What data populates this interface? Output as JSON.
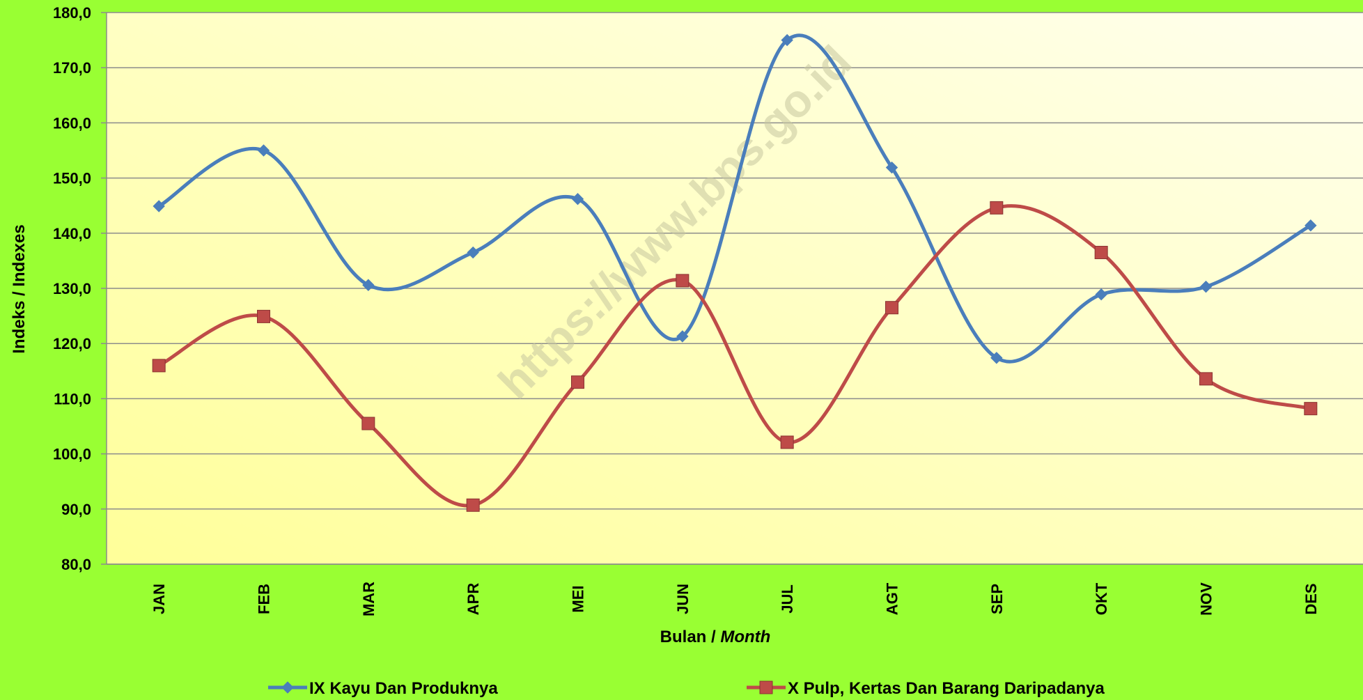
{
  "chart_data": {
    "type": "line",
    "categories": [
      "JAN",
      "FEB",
      "MAR",
      "APR",
      "MEI",
      "JUN",
      "JUL",
      "AGT",
      "SEP",
      "OKT",
      "NOV",
      "DES"
    ],
    "series": [
      {
        "name": "IX Kayu Dan Produknya",
        "color": "#4a7ebb",
        "marker": "diamond",
        "values": [
          144.9,
          155.0,
          130.6,
          136.5,
          146.2,
          121.3,
          175.0,
          151.9,
          117.4,
          128.9,
          130.3,
          141.4
        ]
      },
      {
        "name": "X Pulp, Kertas Dan Barang Daripadanya",
        "color": "#be4b48",
        "marker": "square",
        "values": [
          116.0,
          124.9,
          105.5,
          90.7,
          113.0,
          131.4,
          102.1,
          126.5,
          144.6,
          136.5,
          113.6,
          108.2
        ]
      }
    ],
    "ylim": [
      80,
      180
    ],
    "ytick_step": 10,
    "ytick_labels": [
      "80,0",
      "90,0",
      "100,0",
      "110,0",
      "120,0",
      "130,0",
      "140,0",
      "150,0",
      "160,0",
      "170,0",
      "180,0"
    ],
    "ylabel": "Indeks / Indexes",
    "xlabel": "Bulan",
    "xlabel_italic": "Month",
    "xlabel_separator": " / ",
    "grid": true,
    "legend_position": "bottom",
    "watermark": "https://www.bps.go.id",
    "colors": {
      "background": "#99ff33",
      "plot_gradient_start": "#ffff99",
      "plot_gradient_end": "#ffffee",
      "gridline": "#8c8c8c"
    }
  }
}
